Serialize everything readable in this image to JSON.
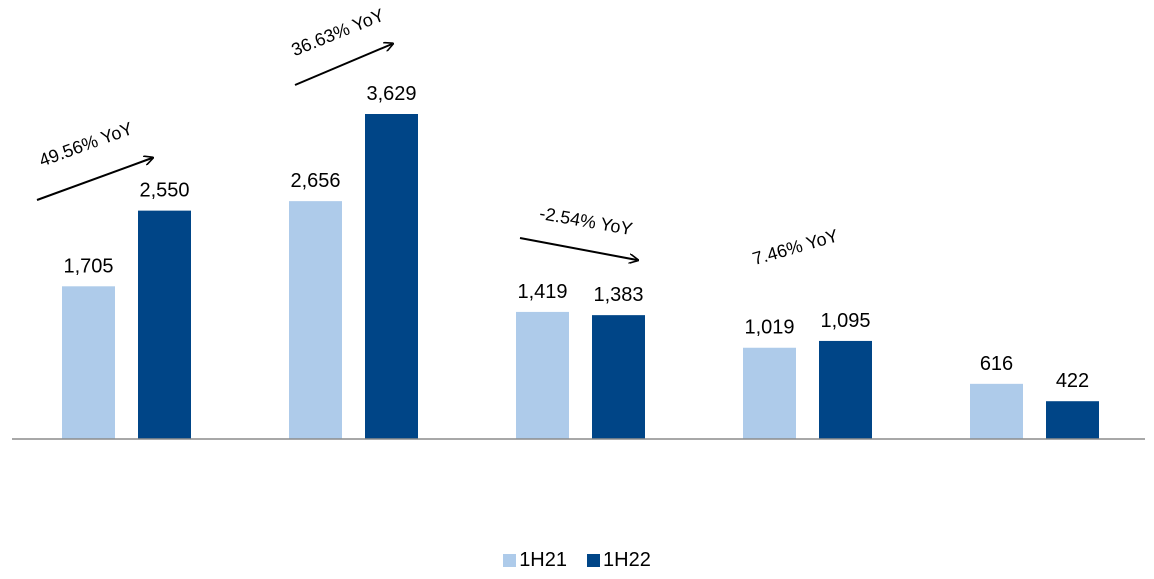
{
  "chart_data": {
    "type": "bar",
    "categories": [
      "",
      "",
      "",
      "",
      ""
    ],
    "series": [
      {
        "name": "1H21",
        "values": [
          1705,
          2656,
          1419,
          1019,
          616
        ],
        "color": "#aecbea"
      },
      {
        "name": "1H22",
        "values": [
          2550,
          3629,
          1383,
          1095,
          422
        ],
        "color": "#004587"
      }
    ],
    "value_labels": {
      "1H21": [
        "1,705",
        "2,656",
        "1,419",
        "1,019",
        "616"
      ],
      "1H22": [
        "2,550",
        "3,629",
        "1,383",
        "1,095",
        "422"
      ]
    },
    "annotations": [
      {
        "text": "49.56% YoY",
        "group": 0,
        "arrow": true
      },
      {
        "text": "36.63% YoY",
        "group": 1,
        "arrow": true
      },
      {
        "text": "-2.54% YoY",
        "group": 2,
        "arrow": true
      },
      {
        "text": "7.46% YoY",
        "group": 3,
        "arrow": false
      }
    ],
    "ylim": [
      0,
      4000
    ],
    "grid": false,
    "legend_position": "bottom-center"
  }
}
